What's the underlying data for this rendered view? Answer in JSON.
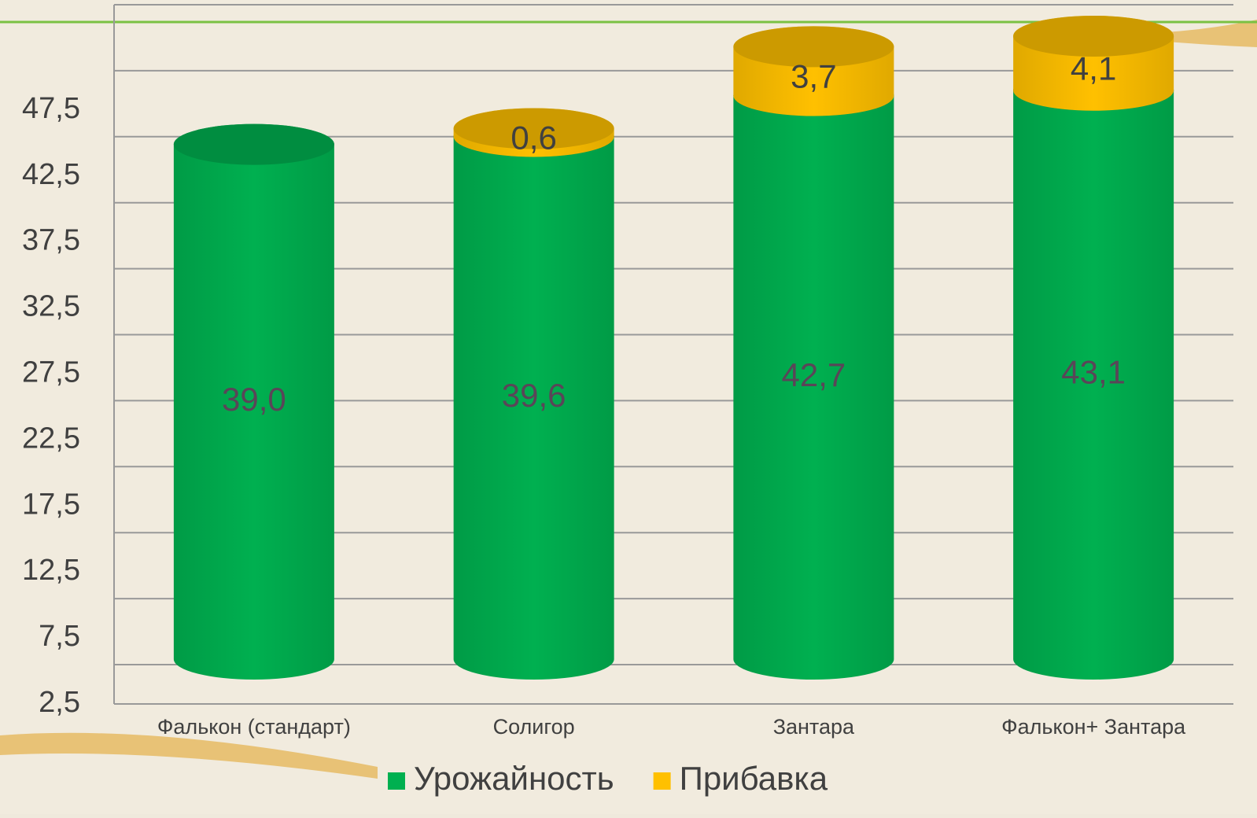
{
  "chart_data": {
    "type": "bar3d_stacked",
    "categories": [
      "Фалькон (стандарт)",
      "Солигор",
      "Зантара",
      "Фалькон+ Зантара"
    ],
    "series": [
      {
        "name": "Урожайность",
        "color": "#00b050",
        "values": [
          39.0,
          39.6,
          42.7,
          43.1
        ],
        "value_labels": [
          "39,0",
          "39,6",
          "42,7",
          "43,1"
        ]
      },
      {
        "name": "Прибавка",
        "color": "#ffc000",
        "values": [
          null,
          0.6,
          3.7,
          4.1
        ],
        "value_labels": [
          null,
          "0,6",
          "3,7",
          "4,1"
        ]
      }
    ],
    "ylim": [
      2.5,
      52.5
    ],
    "yticks": [
      {
        "value": 2.5,
        "label": "2,5"
      },
      {
        "value": 7.5,
        "label": "7,5"
      },
      {
        "value": 12.5,
        "label": "12,5"
      },
      {
        "value": 17.5,
        "label": "17,5"
      },
      {
        "value": 22.5,
        "label": "22,5"
      },
      {
        "value": 27.5,
        "label": "27,5"
      },
      {
        "value": 32.5,
        "label": "32,5"
      },
      {
        "value": 37.5,
        "label": "37,5"
      },
      {
        "value": 42.5,
        "label": "42,5"
      },
      {
        "value": 47.5,
        "label": "47,5"
      }
    ],
    "grid": true
  }
}
